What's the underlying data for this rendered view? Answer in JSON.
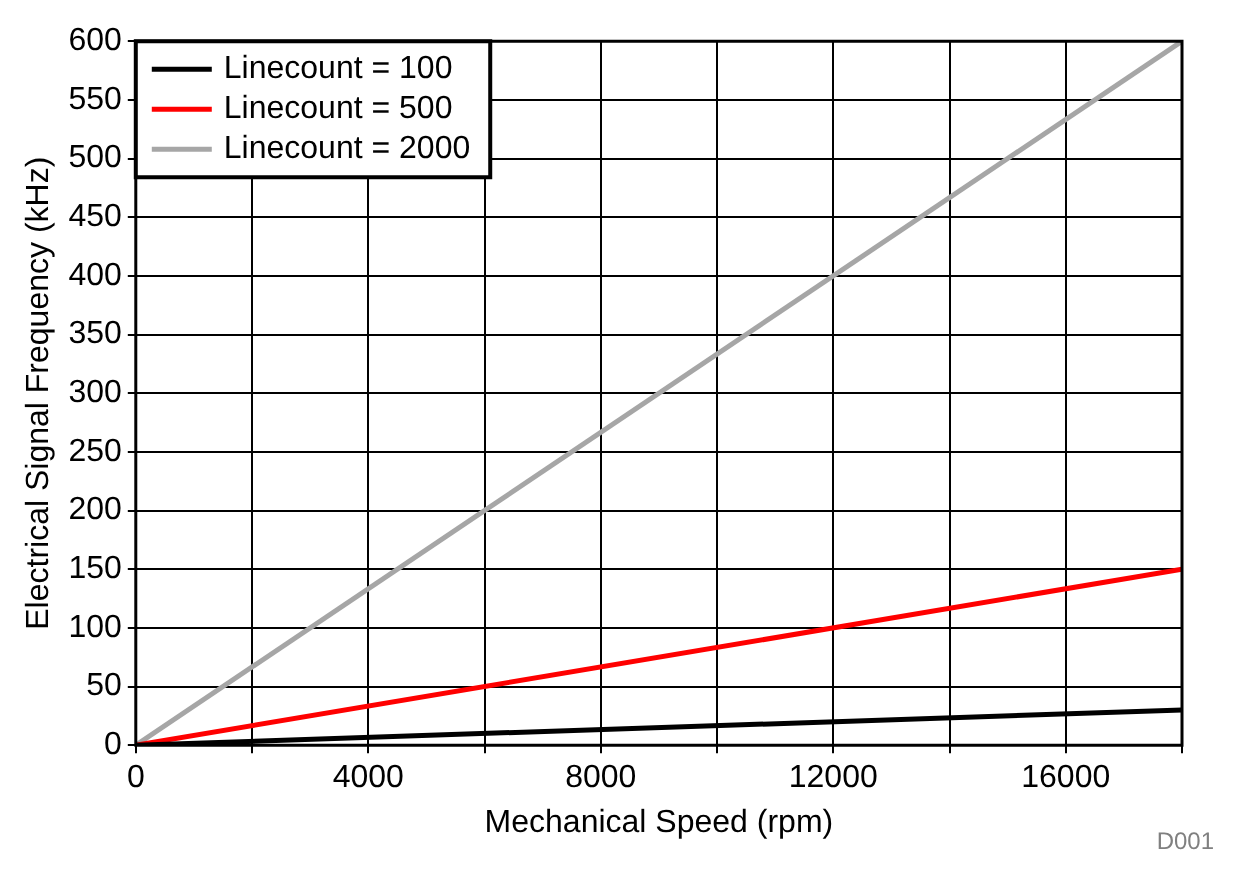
{
  "chart_data": {
    "type": "line",
    "xlabel": "Mechanical Speed (rpm)",
    "ylabel": "Electrical Signal Frequency (kHz)",
    "x": [
      0,
      18000
    ],
    "series": [
      {
        "name": "Linecount = 100",
        "color": "#000000",
        "values": [
          0,
          30
        ]
      },
      {
        "name": "Linecount = 500",
        "color": "#ff0000",
        "values": [
          0,
          150
        ]
      },
      {
        "name": "Linecount = 2000",
        "color": "#a6a6a6",
        "values": [
          0,
          600
        ]
      }
    ],
    "xlim": [
      0,
      18000
    ],
    "xticks": [
      0,
      {
        "value": 2000,
        "label": null
      },
      4000,
      {
        "value": 6000,
        "label": null
      },
      8000,
      {
        "value": 10000,
        "label": null
      },
      12000,
      {
        "value": 14000,
        "label": null
      },
      16000,
      {
        "value": 18000,
        "label": null
      }
    ],
    "ylim": [
      0,
      600
    ],
    "yticks": [
      0,
      50,
      100,
      150,
      200,
      250,
      300,
      350,
      400,
      450,
      500,
      550,
      600
    ],
    "grid": true,
    "legend": "top left",
    "marker": "none",
    "line_style": "solid",
    "annotations": [
      "D001"
    ]
  }
}
